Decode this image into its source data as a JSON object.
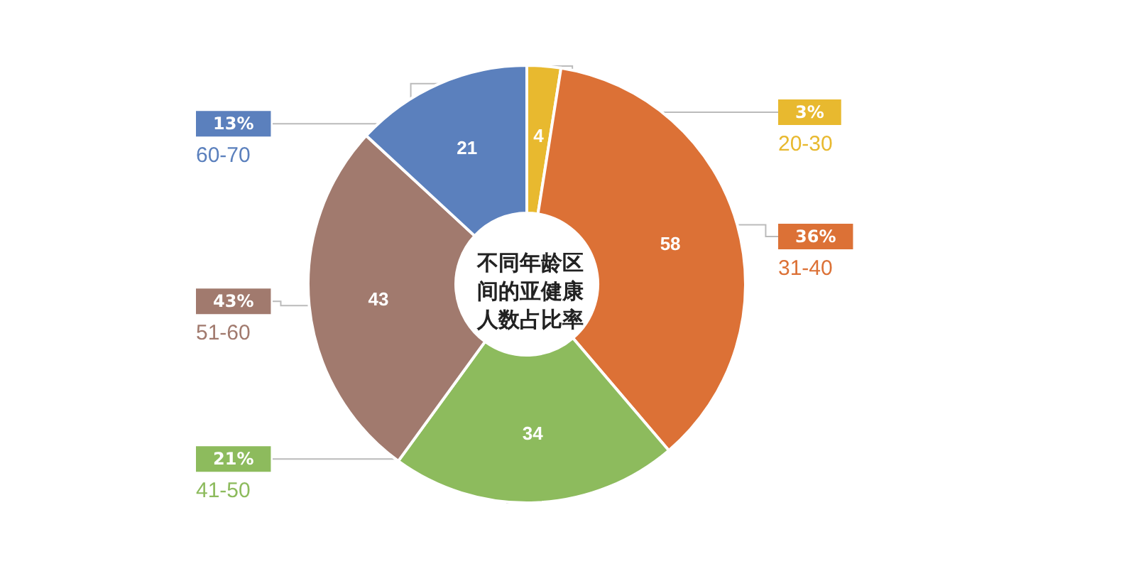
{
  "chart_data": {
    "type": "donut",
    "title": "不同年龄区间的亚健康人数占比率",
    "categories": [
      "20-30",
      "31-40",
      "41-50",
      "51-60",
      "60-70"
    ],
    "values": [
      4,
      58,
      34,
      43,
      21
    ],
    "colors": [
      "#e8b92f",
      "#dc7136",
      "#8dbb5d",
      "#a17a6e",
      "#5b80bd"
    ],
    "data_labels": true,
    "annotations": [
      "3%",
      "36%",
      "21%",
      "43%",
      "13%"
    ],
    "legend": "left"
  }
}
